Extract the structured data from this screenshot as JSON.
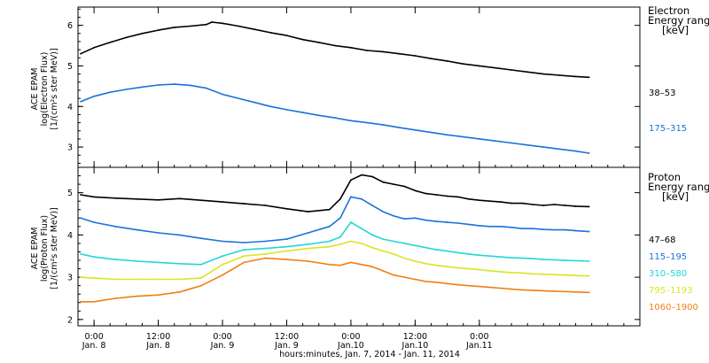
{
  "chart_data": [
    {
      "type": "line",
      "panel": "electron",
      "ylabel_lines": [
        "ACE EPAM",
        "log(Electron Flux)",
        "[1/(cm²s ster MeV)]"
      ],
      "ylim": [
        2.5,
        6.45
      ],
      "yticks": [
        3,
        4,
        5,
        6
      ],
      "xlim_hours": [
        -3,
        102
      ],
      "legend_title_lines": [
        "Electron",
        "Energy range",
        "[keV]"
      ],
      "series": [
        {
          "name": "38–53",
          "color": "#000000",
          "x": [
            -2.5,
            0,
            3,
            6,
            9,
            12,
            15,
            18,
            21,
            22,
            24,
            27,
            30,
            33,
            36,
            39,
            42,
            45,
            48,
            51,
            54,
            57,
            60,
            63,
            66,
            69,
            72,
            75,
            78,
            81,
            84,
            87,
            90,
            92.5
          ],
          "y": [
            5.3,
            5.45,
            5.58,
            5.7,
            5.8,
            5.88,
            5.95,
            5.98,
            6.02,
            6.08,
            6.05,
            5.98,
            5.9,
            5.82,
            5.75,
            5.65,
            5.58,
            5.5,
            5.45,
            5.38,
            5.35,
            5.3,
            5.25,
            5.18,
            5.12,
            5.05,
            5.0,
            4.95,
            4.9,
            4.85,
            4.8,
            4.77,
            4.74,
            4.72
          ]
        },
        {
          "name": "175–315",
          "color": "#1a73d9",
          "x": [
            -2.5,
            0,
            3,
            6,
            9,
            12,
            15,
            18,
            21,
            24,
            27,
            30,
            33,
            36,
            39,
            42,
            45,
            48,
            51,
            54,
            57,
            60,
            63,
            66,
            69,
            72,
            75,
            78,
            81,
            84,
            87,
            90,
            92.5
          ],
          "y": [
            4.12,
            4.25,
            4.35,
            4.42,
            4.48,
            4.53,
            4.55,
            4.52,
            4.45,
            4.3,
            4.2,
            4.1,
            4.0,
            3.92,
            3.85,
            3.78,
            3.72,
            3.65,
            3.6,
            3.55,
            3.48,
            3.42,
            3.36,
            3.3,
            3.25,
            3.2,
            3.15,
            3.1,
            3.05,
            3.0,
            2.95,
            2.9,
            2.85
          ]
        }
      ]
    },
    {
      "type": "line",
      "panel": "proton",
      "ylabel_lines": [
        "ACE EPAM",
        "log(Proton Flux)",
        "[1/(cm²s ster MeV)]"
      ],
      "ylim": [
        1.85,
        5.6
      ],
      "yticks": [
        2,
        3,
        4,
        5
      ],
      "xlim_hours": [
        -3,
        102
      ],
      "legend_title_lines": [
        "Proton",
        "Energy range",
        "[keV]"
      ],
      "series": [
        {
          "name": "47–68",
          "color": "#000000",
          "x": [
            -2.5,
            0,
            4,
            8,
            12,
            16,
            20,
            24,
            28,
            32,
            36,
            40,
            44,
            46,
            48,
            50,
            52,
            54,
            56,
            58,
            60,
            62,
            64,
            66,
            68,
            70,
            72,
            74,
            76,
            78,
            80,
            82,
            84,
            86,
            88,
            90,
            92.5
          ],
          "y": [
            4.95,
            4.9,
            4.87,
            4.85,
            4.83,
            4.86,
            4.82,
            4.78,
            4.74,
            4.7,
            4.62,
            4.55,
            4.6,
            4.85,
            5.3,
            5.42,
            5.38,
            5.25,
            5.2,
            5.15,
            5.05,
            4.98,
            4.95,
            4.92,
            4.9,
            4.85,
            4.82,
            4.8,
            4.78,
            4.75,
            4.75,
            4.72,
            4.7,
            4.72,
            4.7,
            4.68,
            4.67
          ]
        },
        {
          "name": "115–195",
          "color": "#1a73d9",
          "x": [
            -2.5,
            0,
            4,
            8,
            12,
            16,
            20,
            24,
            28,
            32,
            36,
            40,
            44,
            46,
            48,
            50,
            52,
            54,
            56,
            58,
            60,
            62,
            64,
            66,
            68,
            70,
            72,
            74,
            76,
            78,
            80,
            82,
            84,
            86,
            88,
            90,
            92.5
          ],
          "y": [
            4.4,
            4.3,
            4.2,
            4.12,
            4.05,
            4.0,
            3.92,
            3.85,
            3.82,
            3.85,
            3.9,
            4.05,
            4.2,
            4.4,
            4.9,
            4.85,
            4.7,
            4.55,
            4.45,
            4.38,
            4.4,
            4.35,
            4.32,
            4.3,
            4.28,
            4.25,
            4.22,
            4.2,
            4.2,
            4.18,
            4.15,
            4.15,
            4.13,
            4.12,
            4.12,
            4.1,
            4.08
          ]
        },
        {
          "name": "310–580",
          "color": "#22d6d6",
          "x": [
            -2.5,
            0,
            4,
            8,
            12,
            16,
            20,
            24,
            28,
            32,
            36,
            40,
            44,
            46,
            48,
            50,
            52,
            54,
            56,
            58,
            60,
            62,
            64,
            66,
            68,
            70,
            72,
            74,
            76,
            78,
            80,
            82,
            84,
            86,
            88,
            90,
            92.5
          ],
          "y": [
            3.55,
            3.48,
            3.42,
            3.38,
            3.35,
            3.32,
            3.3,
            3.5,
            3.65,
            3.68,
            3.72,
            3.78,
            3.85,
            3.95,
            4.3,
            4.15,
            4.0,
            3.9,
            3.85,
            3.8,
            3.75,
            3.7,
            3.65,
            3.62,
            3.58,
            3.55,
            3.52,
            3.5,
            3.48,
            3.46,
            3.45,
            3.44,
            3.42,
            3.41,
            3.4,
            3.39,
            3.38
          ]
        },
        {
          "name": "795–1193",
          "color": "#d9e61e",
          "x": [
            -2.5,
            0,
            4,
            8,
            12,
            16,
            20,
            24,
            28,
            32,
            36,
            40,
            44,
            46,
            48,
            50,
            52,
            54,
            56,
            58,
            60,
            62,
            64,
            66,
            68,
            70,
            72,
            74,
            76,
            78,
            80,
            82,
            84,
            86,
            88,
            90,
            92.5
          ],
          "y": [
            3.0,
            2.98,
            2.95,
            2.95,
            2.95,
            2.95,
            2.98,
            3.3,
            3.5,
            3.55,
            3.62,
            3.68,
            3.72,
            3.78,
            3.85,
            3.8,
            3.7,
            3.62,
            3.55,
            3.45,
            3.38,
            3.32,
            3.28,
            3.25,
            3.22,
            3.2,
            3.18,
            3.15,
            3.13,
            3.11,
            3.1,
            3.08,
            3.07,
            3.06,
            3.05,
            3.04,
            3.03
          ]
        },
        {
          "name": "1060–1900",
          "color": "#f07f14",
          "x": [
            -2.5,
            0,
            4,
            8,
            12,
            16,
            20,
            24,
            28,
            32,
            36,
            40,
            44,
            46,
            48,
            50,
            52,
            54,
            56,
            58,
            60,
            62,
            64,
            66,
            68,
            70,
            72,
            74,
            76,
            78,
            80,
            82,
            84,
            86,
            88,
            90,
            92.5
          ],
          "y": [
            2.42,
            2.42,
            2.5,
            2.55,
            2.58,
            2.65,
            2.8,
            3.05,
            3.35,
            3.45,
            3.42,
            3.38,
            3.3,
            3.28,
            3.35,
            3.3,
            3.25,
            3.15,
            3.05,
            3.0,
            2.95,
            2.9,
            2.88,
            2.85,
            2.82,
            2.8,
            2.78,
            2.76,
            2.74,
            2.72,
            2.7,
            2.69,
            2.68,
            2.67,
            2.66,
            2.65,
            2.64
          ]
        }
      ]
    }
  ],
  "x_axis": {
    "ticks": [
      {
        "hours": 0,
        "time": "0:00",
        "date": "Jan. 8"
      },
      {
        "hours": 12,
        "time": "12:00",
        "date": "Jan. 8"
      },
      {
        "hours": 24,
        "time": "0:00",
        "date": "Jan. 9"
      },
      {
        "hours": 36,
        "time": "12:00",
        "date": "Jan. 9"
      },
      {
        "hours": 48,
        "time": "0:00",
        "date": "Jan.10"
      },
      {
        "hours": 60,
        "time": "12:00",
        "date": "Jan.10"
      },
      {
        "hours": 72,
        "time": "0:00",
        "date": "Jan.11"
      }
    ],
    "xlabel": "hours:minutes, Jan.  7, 2014 - Jan. 11, 2014"
  }
}
